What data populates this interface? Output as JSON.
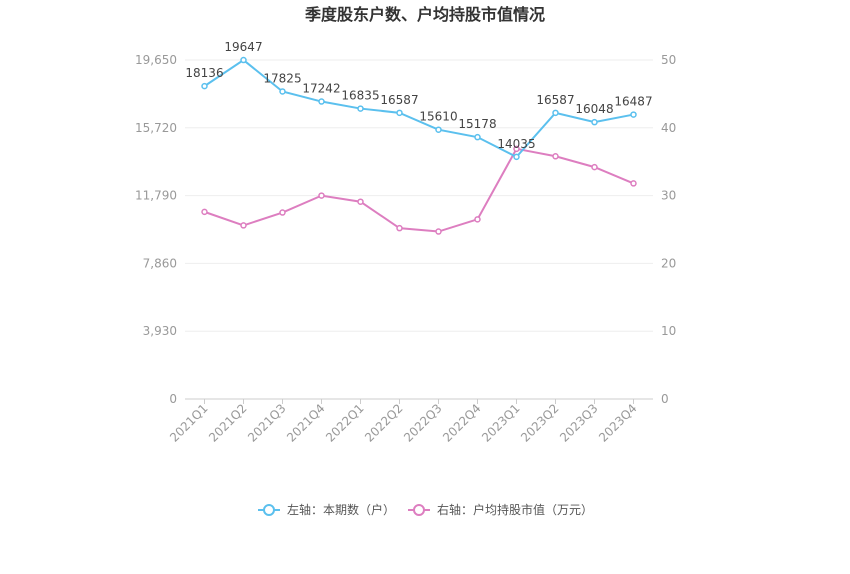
{
  "chart_data": {
    "type": "line",
    "title": "季度股东户数、户均持股市值情况",
    "categories": [
      "2021Q1",
      "2021Q2",
      "2021Q3",
      "2021Q4",
      "2022Q1",
      "2022Q2",
      "2022Q3",
      "2022Q4",
      "2023Q1",
      "2023Q2",
      "2023Q3",
      "2023Q4"
    ],
    "left_axis": {
      "ylim": [
        0,
        19650
      ],
      "ticks": [
        "0",
        "3,930",
        "7,860",
        "11,790",
        "15,720",
        "19,650"
      ]
    },
    "right_axis": {
      "ylim": [
        0,
        50
      ],
      "ticks": [
        "0",
        "10",
        "20",
        "30",
        "40",
        "50"
      ]
    },
    "grid": true,
    "legend_position": "bottom",
    "series": [
      {
        "name": "左轴：本期数（户）",
        "axis": "left",
        "color": "#5bc0ee",
        "values": [
          18136,
          19647,
          17825,
          17242,
          16835,
          16587,
          15610,
          15178,
          14035,
          16587,
          16048,
          16487
        ],
        "labels": [
          "18136",
          "19647",
          "17825",
          "17242",
          "16835",
          "16587",
          "15610",
          "15178",
          "14035",
          "16587",
          "16048",
          "16487"
        ]
      },
      {
        "name": "右轴：户均持股市值（万元）",
        "axis": "right",
        "color": "#dd7ec0",
        "values": [
          27.6,
          25.6,
          27.5,
          30.0,
          29.1,
          25.2,
          24.7,
          26.5,
          36.9,
          35.8,
          34.2,
          31.8
        ]
      }
    ]
  }
}
